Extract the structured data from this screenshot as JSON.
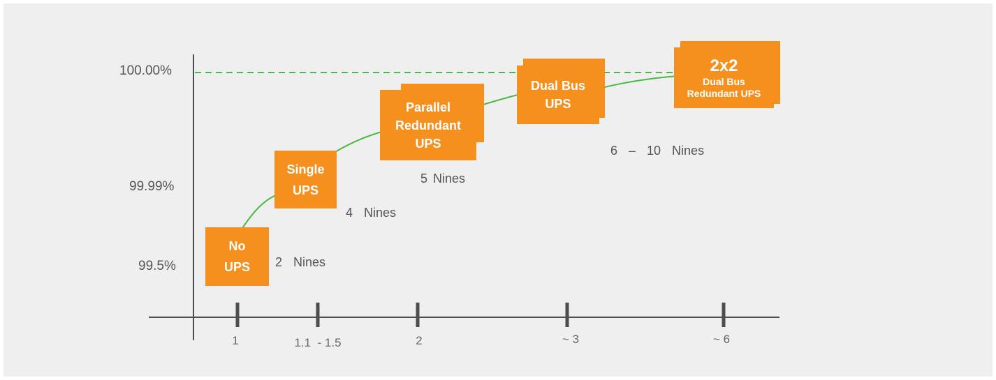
{
  "y_labels": [
    "100.00%",
    "99.99%",
    "99.5%"
  ],
  "x_labels": [
    "1",
    "1.1  - 1.5",
    "2",
    "~ 3",
    "~ 6"
  ],
  "nines_labels": [
    "2  Nines",
    "4  Nines",
    "5 Nines",
    "6  –  10  Nines"
  ],
  "tiers": [
    {
      "line1": "No",
      "line2": "UPS"
    },
    {
      "line1": "Single",
      "line2": "UPS"
    },
    {
      "line1": "Parallel",
      "line2": "Redundant",
      "line3": "UPS"
    },
    {
      "line1": "Dual Bus",
      "line2": "UPS"
    },
    {
      "title": "2x2",
      "line1": "Dual Bus",
      "line2": "Redundant UPS"
    }
  ],
  "colors": {
    "box": "#f5901f",
    "curve": "#4cb848",
    "axis": "#4d4d4d",
    "background": "#efefef"
  }
}
